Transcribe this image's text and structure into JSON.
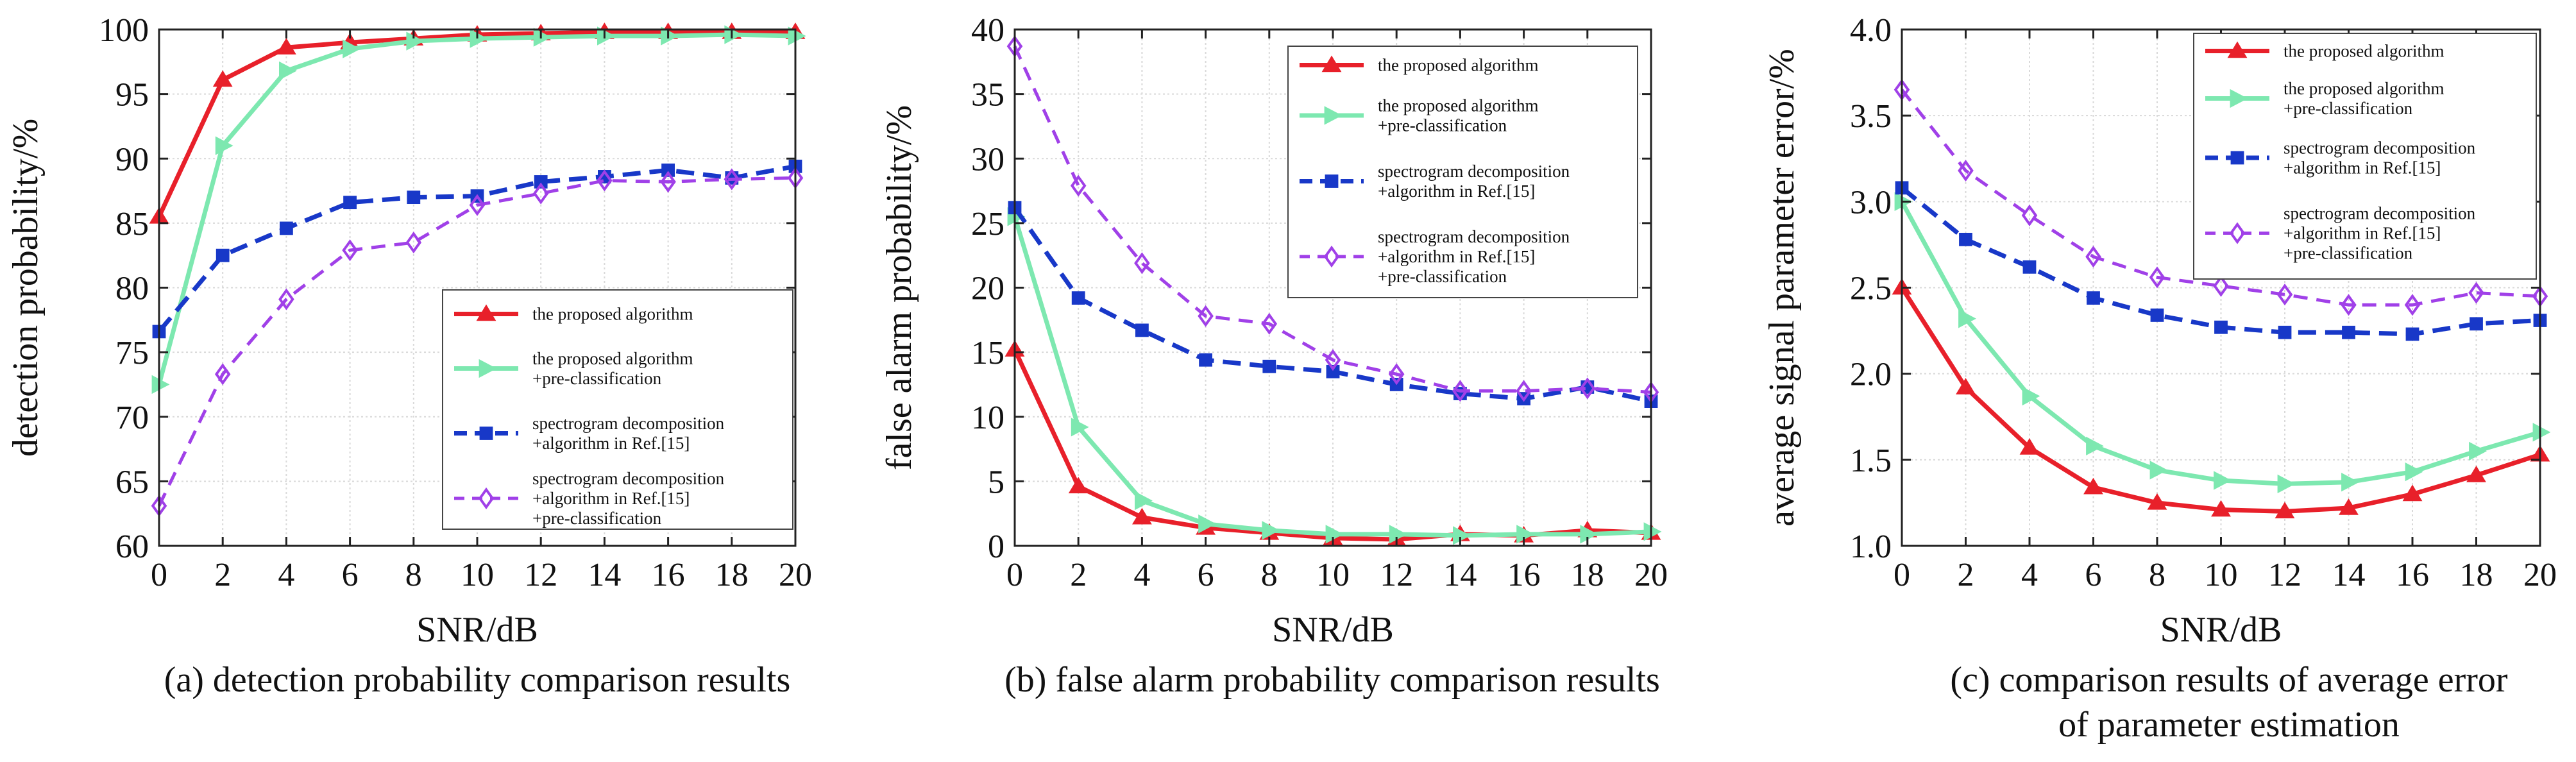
{
  "colors": {
    "proposed": "#e8202a",
    "preclass": "#7de8b0",
    "spectrogram": "#1838c8",
    "spectrogram_preclass": "#a040e8",
    "grid": "#d9d9d9",
    "axis": "#222222"
  },
  "series_labels": {
    "proposed": [
      "the proposed algorithm"
    ],
    "preclass": [
      "the proposed algorithm",
      "+pre-classification"
    ],
    "spectrogram": [
      "spectrogram decomposition",
      "+algorithm in Ref.[15]"
    ],
    "spectrogram_preclass": [
      "spectrogram decomposition",
      "+algorithm in Ref.[15]",
      "+pre-classification"
    ]
  },
  "markers": {
    "proposed": "filled-triangle",
    "preclass": "filled-right-triangle",
    "spectrogram": "filled-square",
    "spectrogram_preclass": "open-diamond"
  },
  "chart_data": [
    {
      "type": "line",
      "caption": [
        "(a) detection probability comparison results"
      ],
      "xlabel": "SNR/dB",
      "ylabel": "detection probability/%",
      "x": [
        0,
        2,
        4,
        6,
        8,
        10,
        12,
        14,
        16,
        18,
        20
      ],
      "xlim": [
        0,
        20
      ],
      "ylim": [
        60,
        100
      ],
      "xticks": [
        "0",
        "2",
        "4",
        "6",
        "8",
        "10",
        "12",
        "14",
        "16",
        "18",
        "20"
      ],
      "yticks": [
        "60",
        "65",
        "70",
        "75",
        "80",
        "85",
        "90",
        "95",
        "100"
      ],
      "grid": true,
      "legend_position": "lower-right",
      "series": [
        {
          "key": "proposed",
          "values": [
            85.5,
            96.1,
            98.6,
            99.0,
            99.3,
            99.6,
            99.7,
            99.8,
            99.8,
            99.8,
            99.8
          ]
        },
        {
          "key": "preclass",
          "values": [
            72.5,
            91.0,
            96.8,
            98.5,
            99.1,
            99.3,
            99.4,
            99.5,
            99.5,
            99.6,
            99.5
          ]
        },
        {
          "key": "spectrogram",
          "values": [
            76.6,
            82.5,
            84.6,
            86.6,
            87.0,
            87.1,
            88.2,
            88.6,
            89.1,
            88.5,
            89.4
          ]
        },
        {
          "key": "spectrogram_preclass",
          "values": [
            63.1,
            73.3,
            79.1,
            82.9,
            83.5,
            86.4,
            87.3,
            88.3,
            88.2,
            88.4,
            88.5
          ]
        }
      ]
    },
    {
      "type": "line",
      "caption": [
        "(b) false alarm probability comparison results"
      ],
      "xlabel": "SNR/dB",
      "ylabel": "false alarm probability/%",
      "x": [
        0,
        2,
        4,
        6,
        8,
        10,
        12,
        14,
        16,
        18,
        20
      ],
      "xlim": [
        0,
        20
      ],
      "ylim": [
        0,
        40
      ],
      "xticks": [
        "0",
        "2",
        "4",
        "6",
        "8",
        "10",
        "12",
        "14",
        "16",
        "18",
        "20"
      ],
      "yticks": [
        "0",
        "5",
        "10",
        "15",
        "20",
        "25",
        "30",
        "35",
        "40"
      ],
      "grid": true,
      "legend_position": "top-right",
      "series": [
        {
          "key": "proposed",
          "values": [
            15.2,
            4.6,
            2.2,
            1.4,
            1.0,
            0.6,
            0.5,
            0.9,
            0.8,
            1.2,
            1.0
          ]
        },
        {
          "key": "preclass",
          "values": [
            25.5,
            9.2,
            3.5,
            1.7,
            1.2,
            0.9,
            0.9,
            0.8,
            0.9,
            0.9,
            1.1
          ]
        },
        {
          "key": "spectrogram",
          "values": [
            26.2,
            19.2,
            16.7,
            14.4,
            13.9,
            13.5,
            12.5,
            11.8,
            11.4,
            12.3,
            11.2
          ]
        },
        {
          "key": "spectrogram_preclass",
          "values": [
            38.7,
            27.9,
            21.9,
            17.8,
            17.2,
            14.4,
            13.3,
            12.0,
            12.0,
            12.2,
            11.9
          ]
        }
      ]
    },
    {
      "type": "line",
      "caption": [
        "(c) comparison results of average error",
        "of parameter estimation"
      ],
      "xlabel": "SNR/dB",
      "ylabel": "average signal parameter error/%",
      "x": [
        0,
        2,
        4,
        6,
        8,
        10,
        12,
        14,
        16,
        18,
        20
      ],
      "xlim": [
        0,
        20
      ],
      "ylim": [
        1.0,
        4.0
      ],
      "xticks": [
        "0",
        "2",
        "4",
        "6",
        "8",
        "10",
        "12",
        "14",
        "16",
        "18",
        "20"
      ],
      "yticks": [
        "1.0",
        "1.5",
        "2.0",
        "2.5",
        "3.0",
        "3.5",
        "4.0"
      ],
      "grid": true,
      "legend_position": "top-right",
      "series": [
        {
          "key": "proposed",
          "values": [
            2.5,
            1.92,
            1.57,
            1.34,
            1.25,
            1.21,
            1.2,
            1.22,
            1.3,
            1.41,
            1.53
          ]
        },
        {
          "key": "preclass",
          "values": [
            3.0,
            2.32,
            1.87,
            1.58,
            1.44,
            1.38,
            1.36,
            1.37,
            1.43,
            1.55,
            1.66
          ]
        },
        {
          "key": "spectrogram",
          "values": [
            3.08,
            2.78,
            2.62,
            2.44,
            2.34,
            2.27,
            2.24,
            2.24,
            2.23,
            2.29,
            2.31
          ]
        },
        {
          "key": "spectrogram_preclass",
          "values": [
            3.65,
            3.18,
            2.92,
            2.68,
            2.56,
            2.51,
            2.46,
            2.4,
            2.4,
            2.47,
            2.45
          ]
        }
      ]
    }
  ]
}
